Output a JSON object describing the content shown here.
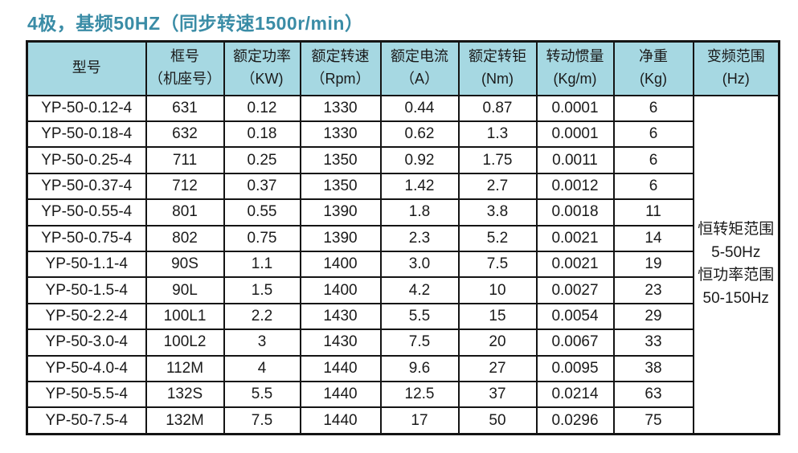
{
  "title": "4极，基频50HZ（同步转速1500r/min）",
  "colors": {
    "title_text": "#3a8ca6",
    "header_background": "#a6d8e2",
    "table_border": "#141414",
    "body_text": "#1a1a1a",
    "page_background": "#ffffff"
  },
  "table": {
    "headers": [
      {
        "line1": "型号",
        "line2": ""
      },
      {
        "line1": "框号",
        "line2": "（机座号）"
      },
      {
        "line1": "额定功率",
        "line2": "（KW)"
      },
      {
        "line1": "额定转速",
        "line2": "（Rpm）"
      },
      {
        "line1": "额定电流",
        "line2": "（A）"
      },
      {
        "line1": "额定转钜",
        "line2": "(Nm)"
      },
      {
        "line1": "转动惯量",
        "line2": "(Kg/m)"
      },
      {
        "line1": "净重",
        "line2": "(Kg)"
      },
      {
        "line1": "变频范围",
        "line2": "(Hz)"
      }
    ],
    "rows": [
      [
        "YP-50-0.12-4",
        "631",
        "0.12",
        "1330",
        "0.44",
        "0.87",
        "0.0001",
        "6"
      ],
      [
        "YP-50-0.18-4",
        "632",
        "0.18",
        "1330",
        "0.62",
        "1.3",
        "0.0001",
        "6"
      ],
      [
        "YP-50-0.25-4",
        "711",
        "0.25",
        "1350",
        "0.92",
        "1.75",
        "0.0011",
        "6"
      ],
      [
        "YP-50-0.37-4",
        "712",
        "0.37",
        "1350",
        "1.42",
        "2.7",
        "0.0012",
        "6"
      ],
      [
        "YP-50-0.55-4",
        "801",
        "0.55",
        "1390",
        "1.8",
        "3.8",
        "0.0018",
        "11"
      ],
      [
        "YP-50-0.75-4",
        "802",
        "0.75",
        "1390",
        "2.3",
        "5.2",
        "0.0021",
        "14"
      ],
      [
        "YP-50-1.1-4",
        "90S",
        "1.1",
        "1400",
        "3.0",
        "7.5",
        "0.0021",
        "19"
      ],
      [
        "YP-50-1.5-4",
        "90L",
        "1.5",
        "1400",
        "4.2",
        "10",
        "0.0027",
        "23"
      ],
      [
        "YP-50-2.2-4",
        "100L1",
        "2.2",
        "1430",
        "5.5",
        "15",
        "0.0054",
        "29"
      ],
      [
        "YP-50-3.0-4",
        "100L2",
        "3",
        "1430",
        "7.5",
        "20",
        "0.0067",
        "33"
      ],
      [
        "YP-50-4.0-4",
        "112M",
        "4",
        "1440",
        "9.6",
        "27",
        "0.0095",
        "38"
      ],
      [
        "YP-50-5.5-4",
        "132S",
        "5.5",
        "1440",
        "12.5",
        "37",
        "0.0214",
        "63"
      ],
      [
        "YP-50-7.5-4",
        "132M",
        "7.5",
        "1440",
        "17",
        "50",
        "0.0296",
        "75"
      ]
    ],
    "freq_range_lines": [
      "恒转矩范围",
      "5-50Hz",
      "恒功率范围",
      "50-150Hz"
    ]
  }
}
